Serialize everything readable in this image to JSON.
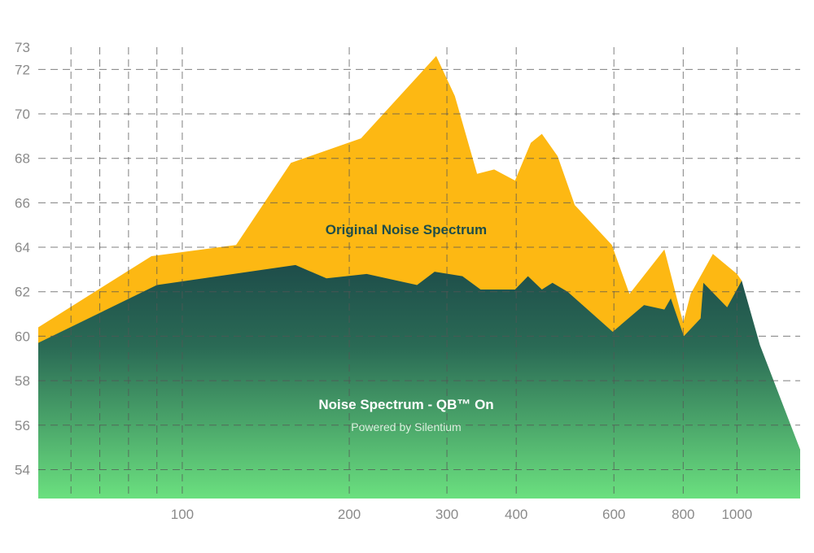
{
  "colors": {
    "original": "#FDB813",
    "qb_top": "#1E4D4A",
    "qb_bottom": "#6BE07F",
    "grid": "#555555",
    "original_label": "#1E4D4A",
    "qb_label": "#ffffff"
  },
  "chart_data": {
    "type": "area",
    "title": "",
    "xlabel": "",
    "ylabel": "",
    "x_scale": "log",
    "xlim": [
      55,
      1300
    ],
    "ylim": [
      52.7,
      73
    ],
    "grid": true,
    "x_ticks": [
      100,
      200,
      300,
      400,
      600,
      800,
      1000
    ],
    "x_tick_labels": [
      "100",
      "200",
      "300",
      "400",
      "600",
      "800",
      "1000"
    ],
    "x_minor_grid": [
      63,
      71,
      80,
      90,
      100,
      200,
      300,
      400,
      600,
      800,
      1000
    ],
    "y_ticks": [
      54,
      56,
      58,
      60,
      62,
      64,
      66,
      68,
      70,
      72,
      73
    ],
    "y_tick_labels": [
      "54",
      "56",
      "58",
      "60",
      "62",
      "64",
      "66",
      "68",
      "70",
      "72",
      "73"
    ],
    "series": [
      {
        "name": "Original Noise Spectrum",
        "points": [
          [
            55,
            60.4
          ],
          [
            88,
            63.6
          ],
          [
            125,
            64.1
          ],
          [
            157,
            67.8
          ],
          [
            210,
            68.9
          ],
          [
            287,
            72.6
          ],
          [
            310,
            70.8
          ],
          [
            340,
            67.3
          ],
          [
            365,
            67.5
          ],
          [
            398,
            67.0
          ],
          [
            425,
            68.7
          ],
          [
            445,
            69.1
          ],
          [
            475,
            68.1
          ],
          [
            510,
            65.9
          ],
          [
            595,
            64.1
          ],
          [
            640,
            61.9
          ],
          [
            740,
            63.9
          ],
          [
            800,
            60.6
          ],
          [
            825,
            61.9
          ],
          [
            905,
            63.7
          ],
          [
            1000,
            62.8
          ],
          [
            1020,
            62.5
          ],
          [
            1100,
            58.9
          ],
          [
            1300,
            54.9
          ]
        ]
      },
      {
        "name": "Noise Spectrum - QB™ On",
        "subtitle": "Powered by Silentium",
        "points": [
          [
            55,
            59.7
          ],
          [
            90,
            62.3
          ],
          [
            160,
            63.2
          ],
          [
            182,
            62.6
          ],
          [
            215,
            62.8
          ],
          [
            265,
            62.3
          ],
          [
            285,
            62.9
          ],
          [
            320,
            62.7
          ],
          [
            345,
            62.1
          ],
          [
            398,
            62.1
          ],
          [
            420,
            62.7
          ],
          [
            445,
            62.1
          ],
          [
            465,
            62.4
          ],
          [
            495,
            62.0
          ],
          [
            597,
            60.2
          ],
          [
            680,
            61.4
          ],
          [
            740,
            61.2
          ],
          [
            760,
            61.7
          ],
          [
            802,
            60.0
          ],
          [
            860,
            60.8
          ],
          [
            870,
            62.4
          ],
          [
            960,
            61.3
          ],
          [
            1020,
            62.5
          ],
          [
            1100,
            59.6
          ],
          [
            1300,
            54.9
          ]
        ]
      }
    ]
  }
}
